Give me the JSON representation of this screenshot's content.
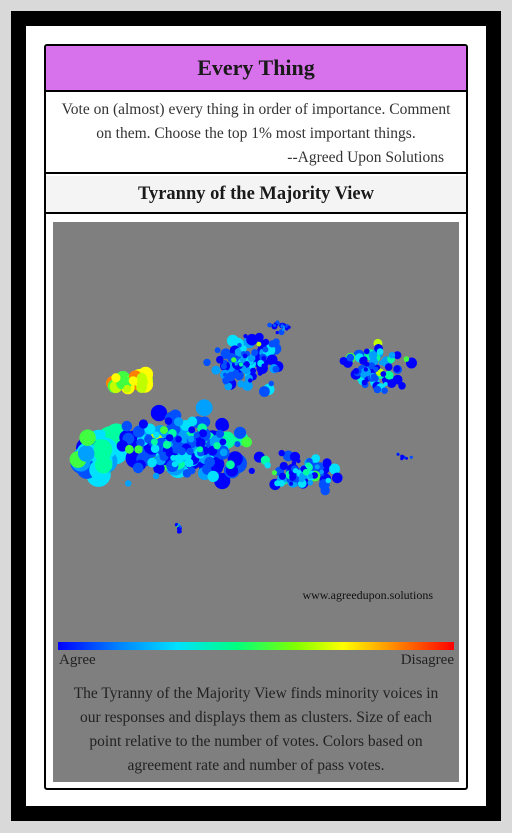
{
  "card": {
    "title": "Every Thing",
    "description_text": "Vote on (almost) every thing in order of importance. Comment on them. Choose the top 1% most important things.",
    "credit": "--Agreed Upon Solutions",
    "view_title": "Tyranny of the Majority View"
  },
  "visualization": {
    "watermark": "www.agreedupon.solutions",
    "scale_left": "Agree",
    "scale_right": "Disagree",
    "explanation": "The Tyranny of the Majority View finds minority voices in our responses and displays them as clusters. Size of each point relative to the number of votes. Colors based on agreement rate and number of pass votes.",
    "background_color": "#7f7f7f",
    "palette": [
      "#0000ff",
      "#0050ff",
      "#00a0ff",
      "#00e0ff",
      "#00ffa0",
      "#40ff40",
      "#c0ff00",
      "#ffff00",
      "#ff8000",
      "#ff0000"
    ]
  }
}
